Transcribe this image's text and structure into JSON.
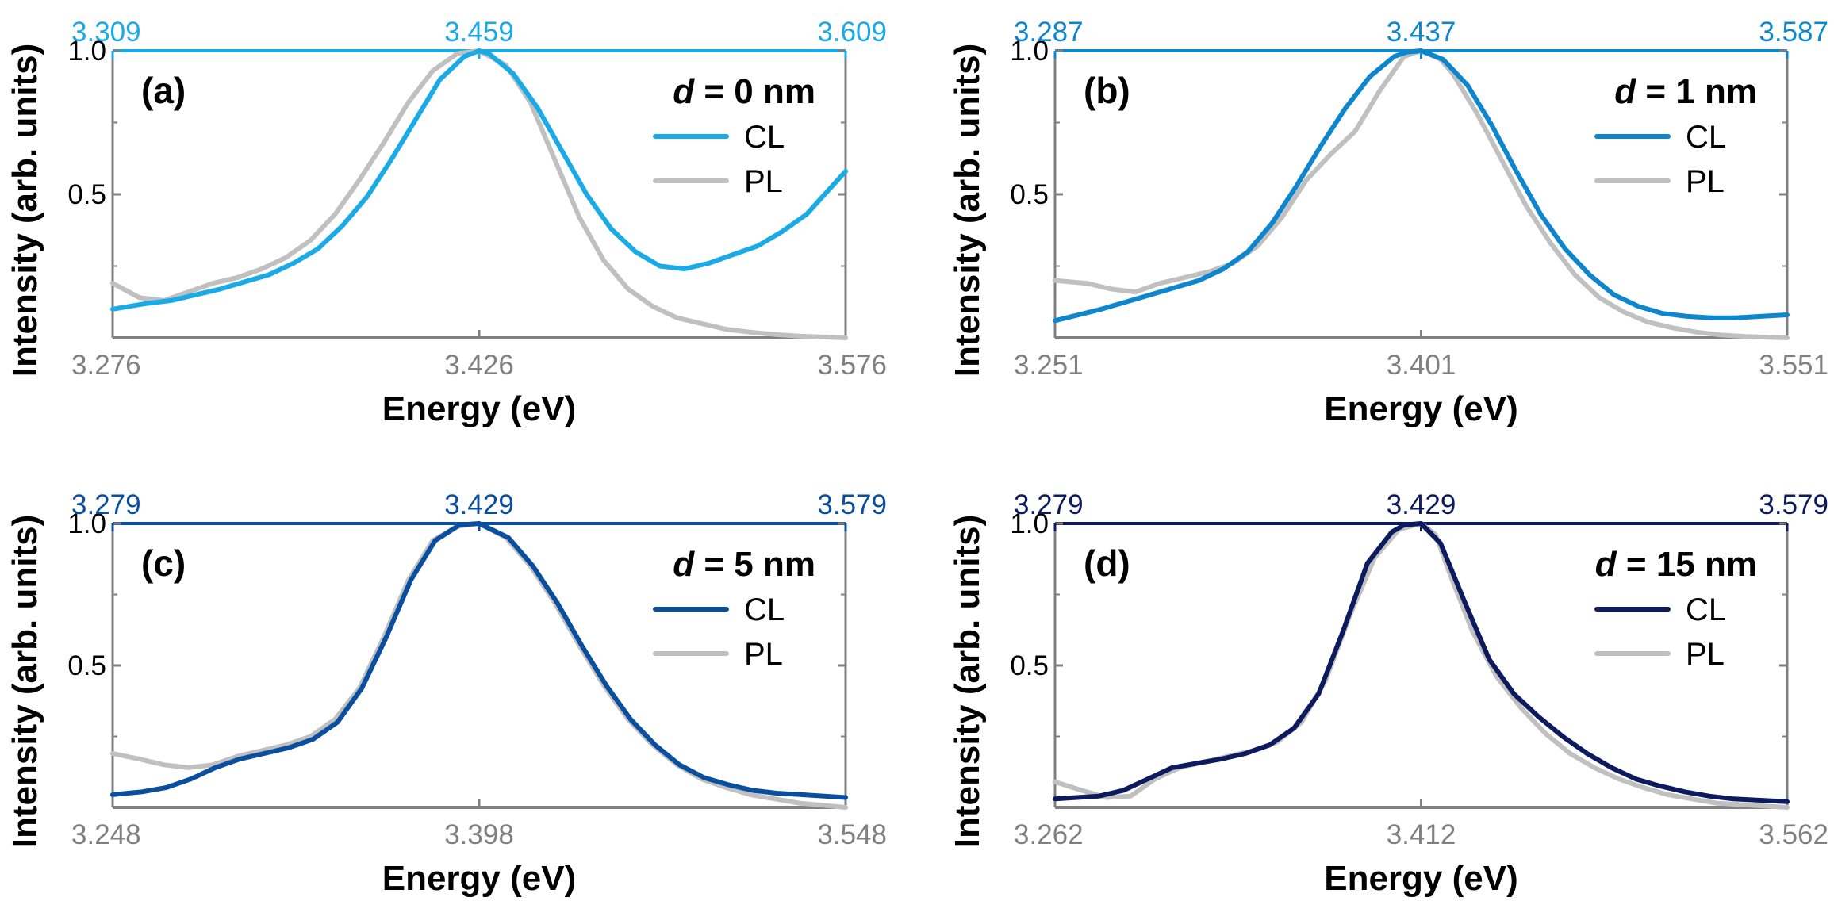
{
  "chart_data": [
    {
      "type": "line",
      "label": "(a)",
      "legend_title": {
        "var": "d",
        "rest": " = 0 nm"
      },
      "xlabel": "Energy (eV)",
      "ylabel": "Intensity (arb. units)",
      "ylim": [
        0,
        1.0
      ],
      "yticks": [
        1.0,
        0.5
      ],
      "ytick_labels": [
        "1.0",
        "0.5"
      ],
      "bottom_axis": {
        "range": [
          3.276,
          3.576
        ],
        "ticks": [
          3.276,
          3.426,
          3.576
        ],
        "tick_labels": [
          "3.276",
          "3.426",
          "3.576"
        ]
      },
      "top_axis": {
        "range": [
          3.309,
          3.609
        ],
        "ticks": [
          3.309,
          3.459,
          3.609
        ],
        "tick_labels": [
          "3.309",
          "3.459",
          "3.609"
        ]
      },
      "accent_color": "#1AAAE6",
      "grid": false,
      "legend_position": "top-right",
      "series": [
        {
          "name": "CL",
          "axis": "bottom",
          "color": "#1AAAE6",
          "x": [
            3.276,
            3.29,
            3.3,
            3.31,
            3.32,
            3.33,
            3.34,
            3.35,
            3.36,
            3.37,
            3.38,
            3.39,
            3.4,
            3.41,
            3.42,
            3.426,
            3.43,
            3.44,
            3.45,
            3.46,
            3.47,
            3.48,
            3.49,
            3.5,
            3.51,
            3.52,
            3.53,
            3.54,
            3.55,
            3.56,
            3.576
          ],
          "values": [
            0.1,
            0.12,
            0.13,
            0.15,
            0.17,
            0.195,
            0.22,
            0.26,
            0.31,
            0.39,
            0.49,
            0.62,
            0.76,
            0.9,
            0.98,
            1.0,
            0.99,
            0.92,
            0.8,
            0.65,
            0.5,
            0.38,
            0.3,
            0.25,
            0.24,
            0.26,
            0.29,
            0.32,
            0.37,
            0.43,
            0.58
          ]
        },
        {
          "name": "PL",
          "axis": "top",
          "color": "#C0C0C0",
          "x": [
            3.309,
            3.32,
            3.33,
            3.34,
            3.35,
            3.36,
            3.37,
            3.38,
            3.39,
            3.4,
            3.41,
            3.42,
            3.43,
            3.44,
            3.45,
            3.459,
            3.47,
            3.48,
            3.49,
            3.5,
            3.51,
            3.52,
            3.53,
            3.54,
            3.55,
            3.56,
            3.57,
            3.58,
            3.59,
            3.6,
            3.609
          ],
          "values": [
            0.19,
            0.14,
            0.13,
            0.16,
            0.19,
            0.21,
            0.24,
            0.28,
            0.34,
            0.43,
            0.55,
            0.68,
            0.82,
            0.93,
            0.99,
            1.0,
            0.95,
            0.82,
            0.62,
            0.42,
            0.27,
            0.17,
            0.11,
            0.07,
            0.05,
            0.03,
            0.02,
            0.012,
            0.006,
            0.003,
            0.0
          ]
        }
      ]
    },
    {
      "type": "line",
      "label": "(b)",
      "legend_title": {
        "var": "d",
        "rest": " = 1 nm"
      },
      "xlabel": "Energy (eV)",
      "ylabel": "Intensity (arb. units)",
      "ylim": [
        0,
        1.0
      ],
      "yticks": [
        1.0,
        0.5
      ],
      "ytick_labels": [
        "1.0",
        "0.5"
      ],
      "bottom_axis": {
        "range": [
          3.251,
          3.551
        ],
        "ticks": [
          3.251,
          3.401,
          3.551
        ],
        "tick_labels": [
          "3.251",
          "3.401",
          "3.551"
        ]
      },
      "top_axis": {
        "range": [
          3.287,
          3.587
        ],
        "ticks": [
          3.287,
          3.437,
          3.587
        ],
        "tick_labels": [
          "3.287",
          "3.437",
          "3.587"
        ]
      },
      "accent_color": "#0E86CE",
      "grid": false,
      "legend_position": "top-right",
      "series": [
        {
          "name": "CL",
          "axis": "bottom",
          "color": "#0E86CE",
          "x": [
            3.251,
            3.27,
            3.29,
            3.31,
            3.32,
            3.33,
            3.34,
            3.35,
            3.36,
            3.37,
            3.38,
            3.39,
            3.395,
            3.401,
            3.41,
            3.42,
            3.43,
            3.44,
            3.45,
            3.46,
            3.47,
            3.48,
            3.49,
            3.5,
            3.51,
            3.52,
            3.53,
            3.54,
            3.551
          ],
          "values": [
            0.06,
            0.1,
            0.15,
            0.2,
            0.24,
            0.3,
            0.4,
            0.53,
            0.67,
            0.8,
            0.91,
            0.98,
            0.995,
            1.0,
            0.97,
            0.88,
            0.74,
            0.58,
            0.43,
            0.31,
            0.22,
            0.15,
            0.11,
            0.085,
            0.075,
            0.07,
            0.07,
            0.075,
            0.08
          ]
        },
        {
          "name": "PL",
          "axis": "top",
          "color": "#C0C0C0",
          "x": [
            3.287,
            3.3,
            3.31,
            3.32,
            3.33,
            3.34,
            3.35,
            3.36,
            3.37,
            3.38,
            3.39,
            3.4,
            3.41,
            3.42,
            3.43,
            3.437,
            3.445,
            3.45,
            3.46,
            3.47,
            3.48,
            3.49,
            3.5,
            3.51,
            3.52,
            3.53,
            3.54,
            3.55,
            3.56,
            3.57,
            3.587
          ],
          "values": [
            0.2,
            0.19,
            0.17,
            0.16,
            0.19,
            0.21,
            0.23,
            0.26,
            0.32,
            0.42,
            0.55,
            0.64,
            0.72,
            0.86,
            0.98,
            1.0,
            0.97,
            0.92,
            0.78,
            0.62,
            0.46,
            0.33,
            0.22,
            0.14,
            0.09,
            0.055,
            0.035,
            0.02,
            0.01,
            0.005,
            0.0
          ]
        }
      ]
    },
    {
      "type": "line",
      "label": "(c)",
      "legend_title": {
        "var": "d",
        "rest": " = 5 nm"
      },
      "xlabel": "Energy (eV)",
      "ylabel": "Intensity (arb. units)",
      "ylim": [
        0,
        1.0
      ],
      "yticks": [
        1.0,
        0.5
      ],
      "ytick_labels": [
        "1.0",
        "0.5"
      ],
      "bottom_axis": {
        "range": [
          3.248,
          3.548
        ],
        "ticks": [
          3.248,
          3.398,
          3.548
        ],
        "tick_labels": [
          "3.248",
          "3.398",
          "3.548"
        ]
      },
      "top_axis": {
        "range": [
          3.279,
          3.579
        ],
        "ticks": [
          3.279,
          3.429,
          3.579
        ],
        "tick_labels": [
          "3.279",
          "3.429",
          "3.579"
        ]
      },
      "accent_color": "#0A4E9E",
      "grid": false,
      "legend_position": "top-right",
      "series": [
        {
          "name": "CL",
          "axis": "bottom",
          "color": "#0A4E9E",
          "x": [
            3.248,
            3.26,
            3.27,
            3.28,
            3.29,
            3.3,
            3.31,
            3.32,
            3.33,
            3.34,
            3.35,
            3.36,
            3.37,
            3.38,
            3.39,
            3.398,
            3.41,
            3.42,
            3.43,
            3.44,
            3.45,
            3.46,
            3.47,
            3.48,
            3.49,
            3.5,
            3.51,
            3.52,
            3.53,
            3.548
          ],
          "values": [
            0.045,
            0.055,
            0.07,
            0.1,
            0.14,
            0.17,
            0.19,
            0.21,
            0.24,
            0.3,
            0.42,
            0.6,
            0.8,
            0.94,
            0.995,
            1.0,
            0.95,
            0.85,
            0.72,
            0.57,
            0.43,
            0.31,
            0.22,
            0.15,
            0.105,
            0.08,
            0.06,
            0.05,
            0.045,
            0.035
          ]
        },
        {
          "name": "PL",
          "axis": "top",
          "color": "#C0C0C0",
          "x": [
            3.279,
            3.29,
            3.3,
            3.31,
            3.32,
            3.33,
            3.34,
            3.35,
            3.36,
            3.37,
            3.38,
            3.39,
            3.4,
            3.41,
            3.42,
            3.429,
            3.44,
            3.45,
            3.46,
            3.47,
            3.48,
            3.49,
            3.5,
            3.51,
            3.52,
            3.53,
            3.54,
            3.55,
            3.56,
            3.579
          ],
          "values": [
            0.19,
            0.17,
            0.15,
            0.14,
            0.15,
            0.18,
            0.2,
            0.22,
            0.25,
            0.31,
            0.42,
            0.6,
            0.8,
            0.94,
            0.99,
            1.0,
            0.95,
            0.85,
            0.72,
            0.57,
            0.43,
            0.31,
            0.22,
            0.15,
            0.1,
            0.07,
            0.045,
            0.03,
            0.015,
            0.0
          ]
        }
      ]
    },
    {
      "type": "line",
      "label": "(d)",
      "legend_title": {
        "var": "d",
        "rest": " = 15 nm"
      },
      "xlabel": "Energy (eV)",
      "ylabel": "Intensity (arb. units)",
      "ylim": [
        0,
        1.0
      ],
      "yticks": [
        1.0,
        0.5
      ],
      "ytick_labels": [
        "1.0",
        "0.5"
      ],
      "bottom_axis": {
        "range": [
          3.262,
          3.562
        ],
        "ticks": [
          3.262,
          3.412,
          3.562
        ],
        "tick_labels": [
          "3.262",
          "3.412",
          "3.562"
        ]
      },
      "top_axis": {
        "range": [
          3.279,
          3.579
        ],
        "ticks": [
          3.279,
          3.429,
          3.579
        ],
        "tick_labels": [
          "3.279",
          "3.429",
          "3.579"
        ]
      },
      "accent_color": "#0D1A5E",
      "grid": false,
      "legend_position": "top-right",
      "series": [
        {
          "name": "CL",
          "axis": "bottom",
          "color": "#0D1A5E",
          "x": [
            3.262,
            3.28,
            3.29,
            3.3,
            3.31,
            3.32,
            3.33,
            3.34,
            3.35,
            3.36,
            3.37,
            3.38,
            3.39,
            3.4,
            3.405,
            3.412,
            3.42,
            3.43,
            3.44,
            3.45,
            3.46,
            3.47,
            3.48,
            3.49,
            3.5,
            3.51,
            3.52,
            3.53,
            3.54,
            3.562
          ],
          "values": [
            0.03,
            0.04,
            0.06,
            0.1,
            0.14,
            0.155,
            0.17,
            0.19,
            0.22,
            0.28,
            0.4,
            0.62,
            0.86,
            0.97,
            0.995,
            1.0,
            0.93,
            0.72,
            0.52,
            0.4,
            0.32,
            0.25,
            0.19,
            0.14,
            0.1,
            0.075,
            0.055,
            0.04,
            0.03,
            0.02
          ]
        },
        {
          "name": "PL",
          "axis": "top",
          "color": "#C0C0C0",
          "x": [
            3.279,
            3.29,
            3.3,
            3.31,
            3.32,
            3.33,
            3.34,
            3.35,
            3.36,
            3.37,
            3.38,
            3.39,
            3.4,
            3.41,
            3.42,
            3.429,
            3.435,
            3.44,
            3.45,
            3.46,
            3.47,
            3.48,
            3.49,
            3.5,
            3.51,
            3.52,
            3.53,
            3.54,
            3.55,
            3.579
          ],
          "values": [
            0.09,
            0.06,
            0.035,
            0.04,
            0.1,
            0.14,
            0.16,
            0.18,
            0.2,
            0.23,
            0.3,
            0.45,
            0.68,
            0.88,
            0.98,
            1.0,
            0.96,
            0.84,
            0.62,
            0.46,
            0.35,
            0.26,
            0.19,
            0.14,
            0.1,
            0.07,
            0.045,
            0.03,
            0.015,
            0.0
          ]
        }
      ]
    }
  ]
}
